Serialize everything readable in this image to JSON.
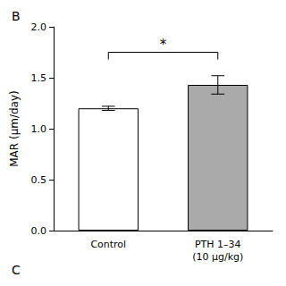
{
  "chart_data": {
    "type": "bar",
    "categories": [
      "Control",
      "PTH 1–34\n(10 μg/kg)"
    ],
    "values": [
      1.2,
      1.43
    ],
    "errors": [
      0.02,
      0.09
    ],
    "colors": [
      "#ffffff",
      "#aaaaaa"
    ],
    "ylabel": "MAR (μm/day)",
    "ylim": [
      0,
      2.0
    ],
    "yticks": [
      {
        "value": 0,
        "label": "0.0"
      },
      0.5,
      {
        "value": 1.0,
        "label": "1.0"
      },
      1.5,
      {
        "value": 2.0,
        "label": "2.0"
      }
    ],
    "grid": false,
    "annotations": [
      {
        "text": "B"
      },
      {
        "text": "C"
      },
      {
        "text": "*",
        "between": [
          0,
          1
        ],
        "y": 1.75
      }
    ]
  }
}
